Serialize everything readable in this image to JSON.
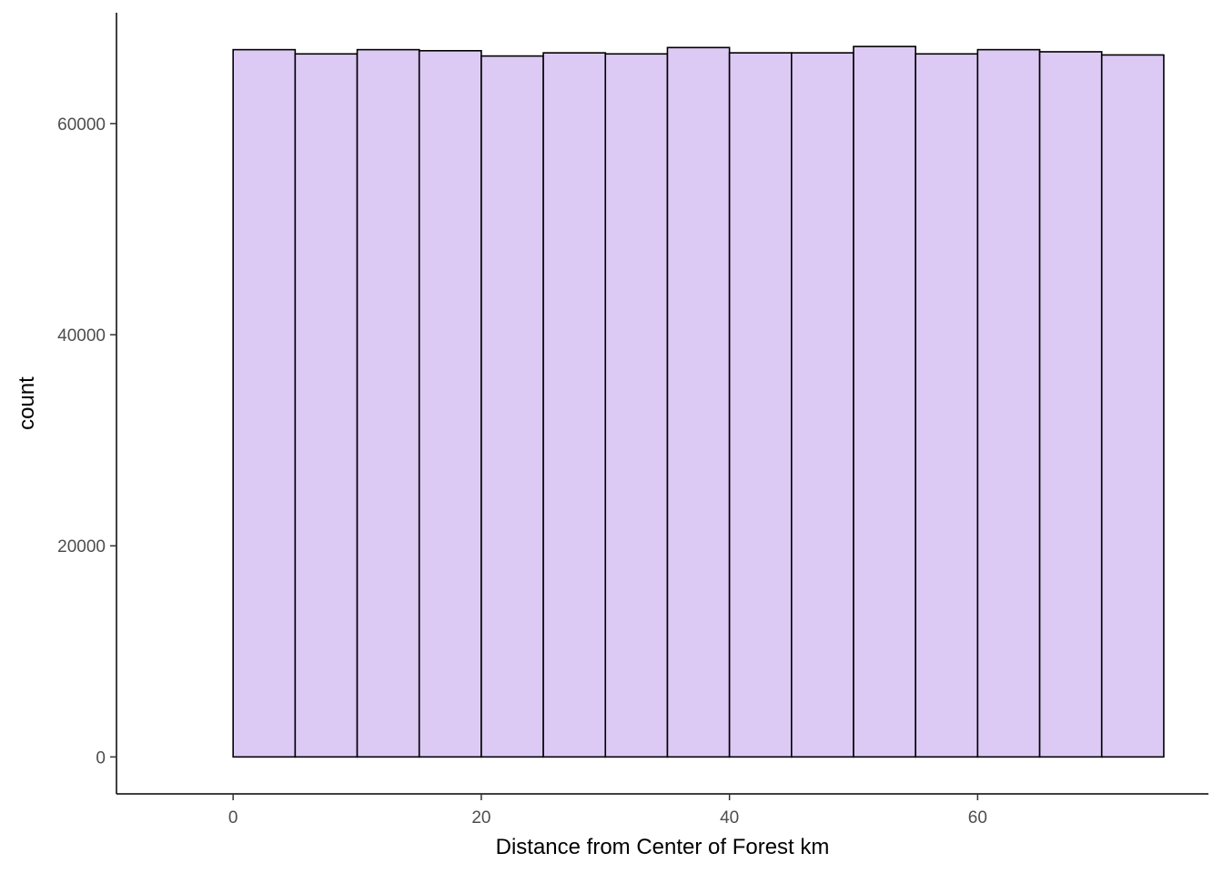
{
  "chart_data": {
    "type": "bar",
    "subtype": "histogram",
    "title": "",
    "xlabel": "Distance from Center of Forest km",
    "ylabel": "count",
    "xlim": [
      -9.4,
      78.6
    ],
    "ylim": [
      -3500,
      70500
    ],
    "x_ticks": [
      0,
      20,
      40,
      60
    ],
    "x_tick_labels": [
      "0",
      "20",
      "40",
      "60"
    ],
    "y_ticks": [
      0,
      20000,
      40000,
      60000
    ],
    "y_tick_labels": [
      "0",
      "20000",
      "40000",
      "60000"
    ],
    "bin_width": 5,
    "bins": [
      {
        "x0": 0,
        "x1": 5,
        "count": 67000
      },
      {
        "x0": 5,
        "x1": 10,
        "count": 66600
      },
      {
        "x0": 10,
        "x1": 15,
        "count": 67000
      },
      {
        "x0": 15,
        "x1": 20,
        "count": 66900
      },
      {
        "x0": 20,
        "x1": 25,
        "count": 66400
      },
      {
        "x0": 25,
        "x1": 30,
        "count": 66700
      },
      {
        "x0": 30,
        "x1": 35,
        "count": 66600
      },
      {
        "x0": 35,
        "x1": 40,
        "count": 67200
      },
      {
        "x0": 40,
        "x1": 45,
        "count": 66700
      },
      {
        "x0": 45,
        "x1": 50,
        "count": 66700
      },
      {
        "x0": 50,
        "x1": 55,
        "count": 67300
      },
      {
        "x0": 55,
        "x1": 60,
        "count": 66600
      },
      {
        "x0": 60,
        "x1": 65,
        "count": 67000
      },
      {
        "x0": 65,
        "x1": 70,
        "count": 66800
      },
      {
        "x0": 70,
        "x1": 75,
        "count": 66500
      }
    ],
    "grid": false,
    "legend": "none",
    "colors": {
      "fill": "#dccaf5",
      "outline": "#000000"
    }
  }
}
